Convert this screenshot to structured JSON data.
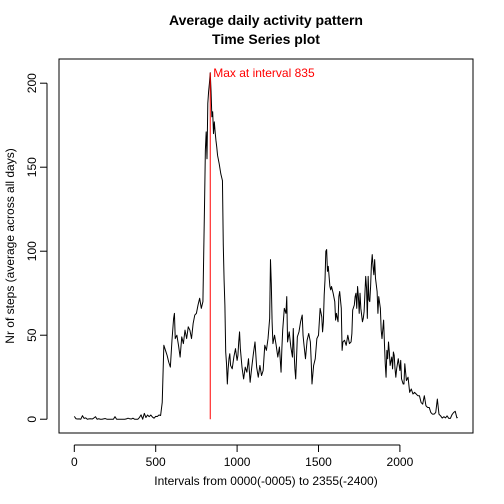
{
  "chart_data": {
    "type": "line",
    "title": "Average daily activity pattern",
    "subtitle": "Time Series plot",
    "xlabel": "Intervals from 0000(-0005) to 2355(-2400)",
    "ylabel": "Nr of steps (average across all days)",
    "xlim": [
      -94,
      2449
    ],
    "ylim": [
      -8.2,
      214.4
    ],
    "x_ticks": [
      0,
      500,
      1000,
      1500,
      2000
    ],
    "y_ticks": [
      0,
      50,
      100,
      150,
      200
    ],
    "grid": false,
    "series": [
      {
        "color": "#000000",
        "points": [
          [
            0,
            1.7
          ],
          [
            10,
            0.3
          ],
          [
            20,
            0.1
          ],
          [
            30,
            0.2
          ],
          [
            40,
            0.0
          ],
          [
            50,
            2.1
          ],
          [
            60,
            0.5
          ],
          [
            70,
            0.8
          ],
          [
            80,
            0.0
          ],
          [
            90,
            0.2
          ],
          [
            100,
            0.3
          ],
          [
            110,
            0.1
          ],
          [
            120,
            0.7
          ],
          [
            130,
            1.5
          ],
          [
            140,
            0.0
          ],
          [
            150,
            0.3
          ],
          [
            160,
            0.0
          ],
          [
            170,
            0.0
          ],
          [
            180,
            0.2
          ],
          [
            190,
            0.4
          ],
          [
            200,
            0.0
          ],
          [
            220,
            0.0
          ],
          [
            230,
            0.0
          ],
          [
            240,
            0.0
          ],
          [
            250,
            1.5
          ],
          [
            260,
            0.0
          ],
          [
            270,
            0.0
          ],
          [
            280,
            0.0
          ],
          [
            290,
            0.0
          ],
          [
            300,
            0.0
          ],
          [
            310,
            0.0
          ],
          [
            320,
            0.2
          ],
          [
            330,
            0.6
          ],
          [
            340,
            0.3
          ],
          [
            350,
            0.1
          ],
          [
            360,
            0.6
          ],
          [
            370,
            0.0
          ],
          [
            380,
            0.0
          ],
          [
            390,
            0.0
          ],
          [
            400,
            1.0
          ],
          [
            410,
            2.6
          ],
          [
            420,
            0.0
          ],
          [
            430,
            3.5
          ],
          [
            440,
            1.0
          ],
          [
            450,
            2.5
          ],
          [
            460,
            1.5
          ],
          [
            470,
            2.5
          ],
          [
            480,
            1.3
          ],
          [
            490,
            0.6
          ],
          [
            500,
            1.7
          ],
          [
            510,
            1.6
          ],
          [
            520,
            2.5
          ],
          [
            530,
            2.2
          ],
          [
            540,
            10.0
          ],
          [
            550,
            44.0
          ],
          [
            560,
            41.0
          ],
          [
            570,
            38.0
          ],
          [
            580,
            34.0
          ],
          [
            590,
            31.0
          ],
          [
            600,
            47.0
          ],
          [
            610,
            60.0
          ],
          [
            615,
            63.0
          ],
          [
            620,
            48.0
          ],
          [
            630,
            50.0
          ],
          [
            640,
            44.0
          ],
          [
            650,
            37.0
          ],
          [
            660,
            49.0
          ],
          [
            670,
            45.0
          ],
          [
            680,
            53.0
          ],
          [
            690,
            48.0
          ],
          [
            700,
            55.0
          ],
          [
            710,
            53.0
          ],
          [
            720,
            48.0
          ],
          [
            730,
            57.0
          ],
          [
            740,
            62.0
          ],
          [
            750,
            63.0
          ],
          [
            760,
            68.0
          ],
          [
            770,
            72.0
          ],
          [
            780,
            66.0
          ],
          [
            790,
            70.0
          ],
          [
            800,
            128.0
          ],
          [
            805,
            160.0
          ],
          [
            810,
            171.0
          ],
          [
            815,
            155.0
          ],
          [
            820,
            188.0
          ],
          [
            825,
            195.0
          ],
          [
            830,
            200.0
          ],
          [
            835,
            206.2
          ],
          [
            840,
            195.0
          ],
          [
            845,
            180.0
          ],
          [
            850,
            183.0
          ],
          [
            855,
            170.0
          ],
          [
            860,
            177.0
          ],
          [
            865,
            171.0
          ],
          [
            870,
            166.0
          ],
          [
            875,
            162.0
          ],
          [
            880,
            157.0
          ],
          [
            890,
            152.0
          ],
          [
            900,
            146.0
          ],
          [
            910,
            142.0
          ],
          [
            915,
            104.0
          ],
          [
            920,
            83.0
          ],
          [
            925,
            68.0
          ],
          [
            930,
            40.0
          ],
          [
            935,
            33.0
          ],
          [
            940,
            21.0
          ],
          [
            945,
            30.0
          ],
          [
            950,
            36.0
          ],
          [
            955,
            39.0
          ],
          [
            960,
            32.0
          ],
          [
            970,
            30.0
          ],
          [
            980,
            37.0
          ],
          [
            990,
            42.0
          ],
          [
            1000,
            35.0
          ],
          [
            1005,
            38.0
          ],
          [
            1010,
            46.0
          ],
          [
            1015,
            52.0
          ],
          [
            1020,
            42.0
          ],
          [
            1030,
            31.0
          ],
          [
            1040,
            24.0
          ],
          [
            1050,
            31.0
          ],
          [
            1060,
            28.0
          ],
          [
            1070,
            36.0
          ],
          [
            1080,
            22.0
          ],
          [
            1090,
            31.0
          ],
          [
            1100,
            39.0
          ],
          [
            1110,
            46.0
          ],
          [
            1120,
            31.0
          ],
          [
            1130,
            25.0
          ],
          [
            1140,
            32.0
          ],
          [
            1150,
            26.0
          ],
          [
            1160,
            29.0
          ],
          [
            1170,
            44.0
          ],
          [
            1180,
            41.0
          ],
          [
            1190,
            48.0
          ],
          [
            1200,
            60.0
          ],
          [
            1205,
            95.0
          ],
          [
            1210,
            81.0
          ],
          [
            1215,
            58.0
          ],
          [
            1220,
            45.0
          ],
          [
            1230,
            50.0
          ],
          [
            1240,
            44.0
          ],
          [
            1250,
            37.0
          ],
          [
            1260,
            43.0
          ],
          [
            1270,
            28.0
          ],
          [
            1275,
            42.0
          ],
          [
            1280,
            53.0
          ],
          [
            1290,
            66.0
          ],
          [
            1300,
            63.0
          ],
          [
            1305,
            73.0
          ],
          [
            1310,
            46.0
          ],
          [
            1320,
            52.0
          ],
          [
            1330,
            43.0
          ],
          [
            1340,
            37.0
          ],
          [
            1345,
            54.0
          ],
          [
            1350,
            40.0
          ],
          [
            1355,
            30.0
          ],
          [
            1360,
            24.0
          ],
          [
            1365,
            36.0
          ],
          [
            1370,
            49.0
          ],
          [
            1380,
            52.0
          ],
          [
            1390,
            58.0
          ],
          [
            1400,
            62.0
          ],
          [
            1405,
            50.0
          ],
          [
            1410,
            45.0
          ],
          [
            1420,
            36.0
          ],
          [
            1430,
            47.0
          ],
          [
            1440,
            51.0
          ],
          [
            1450,
            46.0
          ],
          [
            1455,
            35.0
          ],
          [
            1460,
            21.0
          ],
          [
            1470,
            32.0
          ],
          [
            1480,
            36.0
          ],
          [
            1490,
            48.0
          ],
          [
            1500,
            50.0
          ],
          [
            1510,
            66.0
          ],
          [
            1520,
            61.0
          ],
          [
            1525,
            52.0
          ],
          [
            1530,
            58.0
          ],
          [
            1535,
            74.0
          ],
          [
            1540,
            83.0
          ],
          [
            1545,
            100.0
          ],
          [
            1550,
            101.0
          ],
          [
            1555,
            88.0
          ],
          [
            1560,
            91.0
          ],
          [
            1570,
            79.0
          ],
          [
            1575,
            77.0
          ],
          [
            1580,
            79.0
          ],
          [
            1590,
            75.0
          ],
          [
            1600,
            70.0
          ],
          [
            1605,
            59.0
          ],
          [
            1610,
            63.0
          ],
          [
            1620,
            58.0
          ],
          [
            1625,
            73.0
          ],
          [
            1630,
            76.0
          ],
          [
            1640,
            66.0
          ],
          [
            1645,
            41.0
          ],
          [
            1650,
            46.0
          ],
          [
            1660,
            47.0
          ],
          [
            1670,
            44.0
          ],
          [
            1680,
            50.0
          ],
          [
            1690,
            45.0
          ],
          [
            1700,
            46.0
          ],
          [
            1705,
            51.0
          ],
          [
            1710,
            65.0
          ],
          [
            1720,
            68.0
          ],
          [
            1725,
            73.0
          ],
          [
            1730,
            75.0
          ],
          [
            1735,
            66.0
          ],
          [
            1740,
            79.0
          ],
          [
            1745,
            73.0
          ],
          [
            1750,
            63.0
          ],
          [
            1755,
            75.0
          ],
          [
            1760,
            66.0
          ],
          [
            1770,
            58.0
          ],
          [
            1775,
            60.0
          ],
          [
            1780,
            64.0
          ],
          [
            1790,
            85.0
          ],
          [
            1795,
            78.0
          ],
          [
            1800,
            60.0
          ],
          [
            1805,
            85.0
          ],
          [
            1810,
            71.0
          ],
          [
            1815,
            70.0
          ],
          [
            1820,
            79.0
          ],
          [
            1825,
            92.0
          ],
          [
            1830,
            98.0
          ],
          [
            1835,
            91.0
          ],
          [
            1840,
            86.0
          ],
          [
            1845,
            95.0
          ],
          [
            1850,
            84.0
          ],
          [
            1860,
            76.0
          ],
          [
            1865,
            63.0
          ],
          [
            1870,
            73.0
          ],
          [
            1880,
            66.0
          ],
          [
            1885,
            53.0
          ],
          [
            1890,
            48.0
          ],
          [
            1900,
            59.0
          ],
          [
            1905,
            45.0
          ],
          [
            1910,
            33.0
          ],
          [
            1915,
            25.0
          ],
          [
            1920,
            41.0
          ],
          [
            1925,
            36.0
          ],
          [
            1930,
            46.0
          ],
          [
            1935,
            40.0
          ],
          [
            1940,
            32.0
          ],
          [
            1950,
            37.0
          ],
          [
            1955,
            30.0
          ],
          [
            1960,
            40.0
          ],
          [
            1965,
            38.0
          ],
          [
            1970,
            30.0
          ],
          [
            1975,
            25.0
          ],
          [
            1980,
            30.0
          ],
          [
            1990,
            36.0
          ],
          [
            2000,
            29.0
          ],
          [
            2005,
            35.0
          ],
          [
            2010,
            24.0
          ],
          [
            2020,
            21.0
          ],
          [
            2025,
            21.0
          ],
          [
            2030,
            33.0
          ],
          [
            2040,
            23.0
          ],
          [
            2050,
            25.0
          ],
          [
            2060,
            16.0
          ],
          [
            2070,
            18.0
          ],
          [
            2080,
            15.0
          ],
          [
            2090,
            16.0
          ],
          [
            2100,
            15.0
          ],
          [
            2110,
            14.0
          ],
          [
            2120,
            14.0
          ],
          [
            2130,
            10.0
          ],
          [
            2140,
            9.0
          ],
          [
            2150,
            14.0
          ],
          [
            2160,
            8.0
          ],
          [
            2170,
            7.0
          ],
          [
            2180,
            7.0
          ],
          [
            2190,
            4.0
          ],
          [
            2200,
            3.0
          ],
          [
            2210,
            3.0
          ],
          [
            2220,
            4.0
          ],
          [
            2230,
            12.0
          ],
          [
            2240,
            3.0
          ],
          [
            2250,
            2.0
          ],
          [
            2260,
            0.7
          ],
          [
            2270,
            1.5
          ],
          [
            2280,
            0.8
          ],
          [
            2290,
            2.0
          ],
          [
            2300,
            0.5
          ],
          [
            2310,
            0.5
          ],
          [
            2320,
            2.7
          ],
          [
            2330,
            4.0
          ],
          [
            2340,
            4.7
          ],
          [
            2350,
            0.8
          ],
          [
            2355,
            1.1
          ]
        ]
      }
    ],
    "annotation": {
      "label": "Max at interval 835",
      "x": 835,
      "y": 206.2,
      "color": "#ff0000"
    }
  }
}
